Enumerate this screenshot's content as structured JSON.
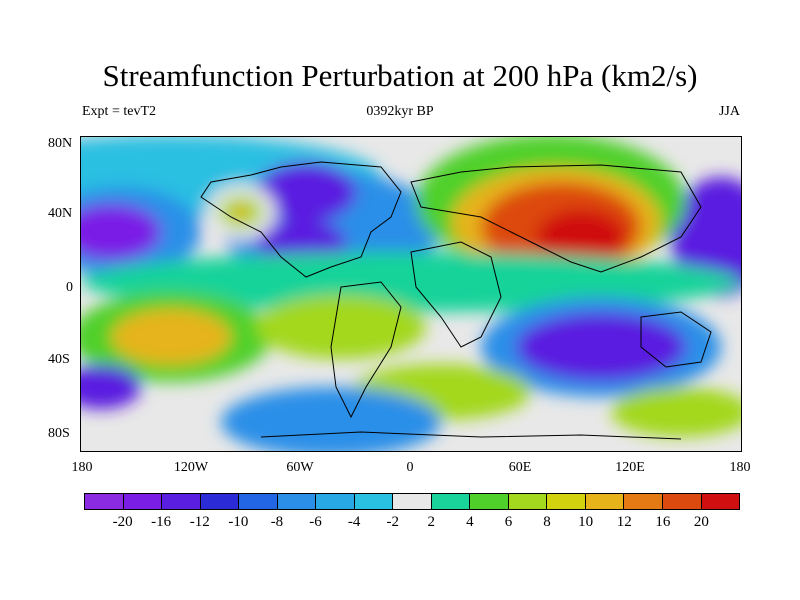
{
  "title": "Streamfunction Perturbation at 200 hPa (km2/s)",
  "left_label": "Expt = tevT2",
  "center_label": "0392kyr BP",
  "right_label": "JJA",
  "lat_ticks": [
    "80N",
    "40N",
    "0",
    "40S",
    "80S"
  ],
  "lon_ticks": [
    "180",
    "120W",
    "60W",
    "0",
    "60E",
    "120E",
    "180"
  ],
  "colorbar": {
    "colors": [
      "#8a2be2",
      "#7a1ee6",
      "#5a1ee0",
      "#2b2bd8",
      "#2266e6",
      "#2b8fe8",
      "#29a8e6",
      "#2ac0e2",
      "#e8e8e8",
      "#19d39a",
      "#4fd02a",
      "#a3d81f",
      "#d2d20f",
      "#e6b41a",
      "#e47a14",
      "#dd4a10",
      "#d01010"
    ],
    "labels": [
      "-20",
      "-16",
      "-12",
      "-10",
      "-8",
      "-6",
      "-4",
      "-2",
      "2",
      "4",
      "6",
      "8",
      "10",
      "12",
      "16",
      "20"
    ]
  }
}
